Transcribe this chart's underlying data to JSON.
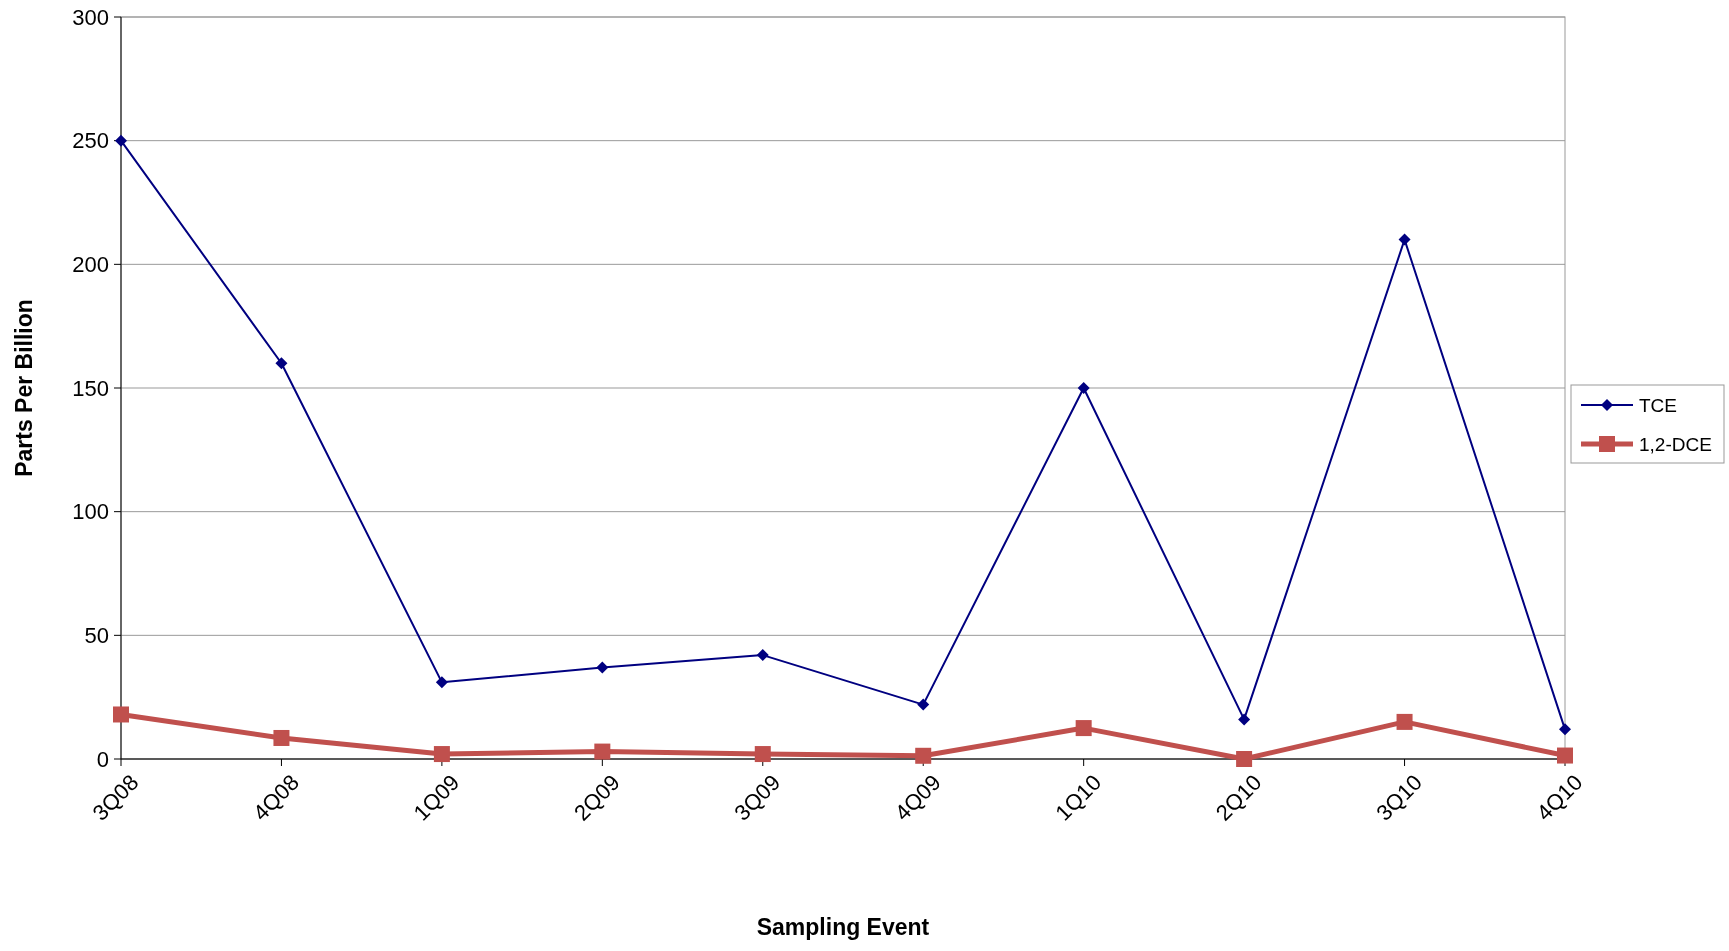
{
  "chart_data": {
    "type": "line",
    "xlabel": "Sampling Event",
    "ylabel": "Parts Per Billion",
    "categories": [
      "3Q08",
      "4Q08",
      "1Q09",
      "2Q09",
      "3Q09",
      "4Q09",
      "1Q10",
      "2Q10",
      "3Q10",
      "4Q10"
    ],
    "series": [
      {
        "name": "TCE",
        "color": "#000080",
        "marker": "diamond",
        "values": [
          250,
          160,
          31,
          37,
          42,
          22,
          150,
          16,
          210,
          12
        ]
      },
      {
        "name": "1,2-DCE",
        "color": "#c0504d",
        "marker": "square",
        "values": [
          18,
          8.5,
          2,
          3,
          2,
          1.3,
          12.5,
          0,
          15,
          1.4
        ]
      }
    ],
    "ylim": [
      0,
      300
    ],
    "yticks": [
      0,
      50,
      100,
      150,
      200,
      250,
      300
    ],
    "grid": "y",
    "legend": "right"
  }
}
